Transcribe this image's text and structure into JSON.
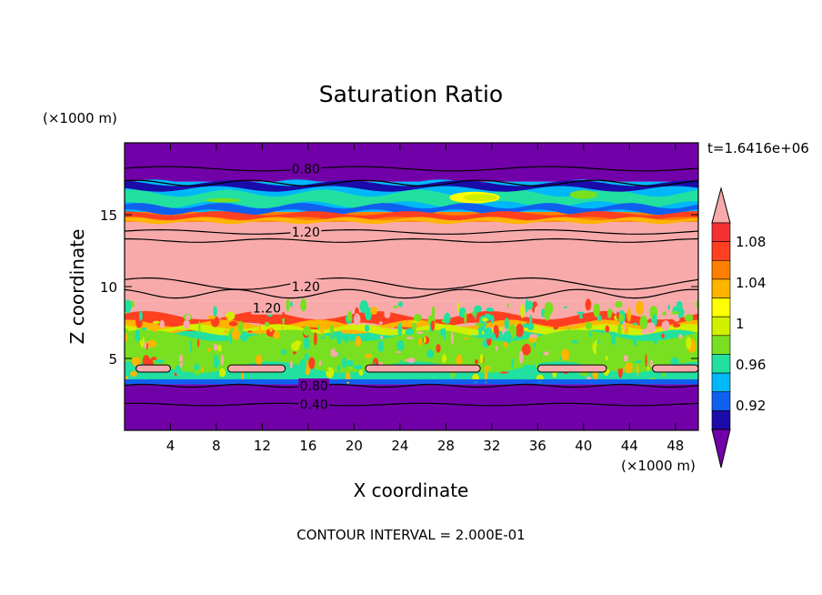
{
  "chart_data": {
    "type": "heatmap",
    "title": "Saturation Ratio",
    "xlabel": "X coordinate",
    "ylabel": "Z coordinate",
    "x_unit": "(×1000 m)",
    "y_unit": "(×1000 m)",
    "time_label": "t=1.6416e+06",
    "footer": "CONTOUR INTERVAL = 2.000E-01",
    "xlim": [
      0,
      50
    ],
    "ylim": [
      0,
      20
    ],
    "x_ticks": [
      4,
      8,
      12,
      16,
      20,
      24,
      28,
      32,
      36,
      40,
      44,
      48
    ],
    "y_ticks": [
      5,
      10,
      15
    ],
    "colorbar": {
      "labels": [
        "0.92",
        "0.96",
        "1",
        "1.04",
        "1.08"
      ],
      "colors": [
        "#7200a8",
        "#1a0ca8",
        "#1060f0",
        "#00b8f8",
        "#22e0a0",
        "#78e020",
        "#d0f000",
        "#ffff00",
        "#ffb400",
        "#ff8000",
        "#ff4020",
        "#f53030",
        "#f8aaaa"
      ],
      "label_level_index": [
        2,
        4,
        6,
        8,
        10
      ]
    },
    "contour_labels": [
      {
        "x": 15.8,
        "z": 18.2,
        "text": "0.80"
      },
      {
        "x": 15.8,
        "z": 13.8,
        "text": "1.20"
      },
      {
        "x": 15.8,
        "z": 10.0,
        "text": "1.20"
      },
      {
        "x": 12.4,
        "z": 8.5,
        "text": "1.20"
      },
      {
        "x": 16.5,
        "z": 3.1,
        "text": "0.80"
      },
      {
        "x": 16.5,
        "z": 1.8,
        "text": "0.40"
      }
    ],
    "layers": [
      {
        "z_min": 0.0,
        "z_max": 3.2,
        "value": 0.4,
        "description_color": "#7200a8"
      },
      {
        "z_min": 3.2,
        "z_max": 3.5,
        "value": 0.96,
        "description_color": "#1060f0"
      },
      {
        "z_min": 3.5,
        "z_max": 7.0,
        "value": 1.0,
        "description_color": "#22e0a0"
      },
      {
        "z_min": 7.0,
        "z_max": 9.0,
        "value": 1.1,
        "description_color": "#f8aaaa"
      },
      {
        "z_min": 9.0,
        "z_max": 14.5,
        "value": 1.2,
        "description_color": "#f8aaaa"
      },
      {
        "z_min": 14.5,
        "z_max": 15.2,
        "value": 1.06,
        "description_color": "#ff8000"
      },
      {
        "z_min": 15.2,
        "z_max": 17.3,
        "value": 0.98,
        "description_color": "#00b8f8"
      },
      {
        "z_min": 17.3,
        "z_max": 20.0,
        "value": 0.8,
        "description_color": "#7200a8"
      }
    ]
  }
}
